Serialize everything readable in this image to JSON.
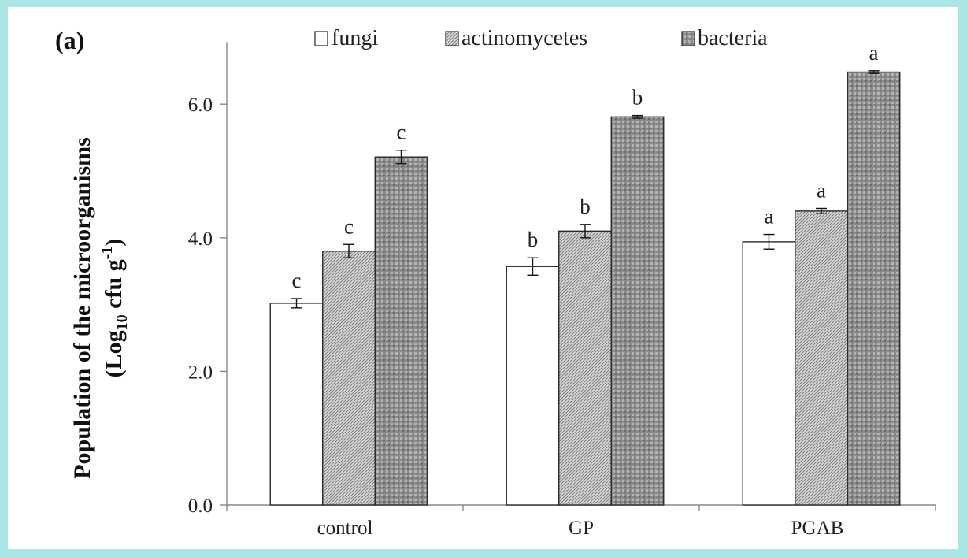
{
  "chart_data": {
    "type": "bar",
    "panel_label": "(a)",
    "ylabel_line1": "Population of the microorganisms",
    "ylabel_line2_prefix": "(Log",
    "ylabel_line2_sub": "10",
    "ylabel_line2_mid": " cfu g",
    "ylabel_line2_sup": "-1",
    "ylabel_line2_suffix": ")",
    "ylim": [
      0,
      7.0
    ],
    "yticks": [
      0,
      2,
      4,
      6
    ],
    "ytick_labels": [
      "0.0",
      "2.0",
      "4.0",
      "6.0"
    ],
    "categories": [
      "control",
      "GP",
      "PGAB"
    ],
    "series": [
      {
        "name": "fungi",
        "pattern": "none",
        "values": [
          3.02,
          3.57,
          3.94
        ],
        "errors": [
          0.07,
          0.13,
          0.11
        ],
        "letters": [
          "c",
          "b",
          "a"
        ]
      },
      {
        "name": "actinomycetes",
        "pattern": "hatch",
        "values": [
          3.8,
          4.1,
          4.4
        ],
        "errors": [
          0.1,
          0.1,
          0.04
        ],
        "letters": [
          "c",
          "b",
          "a"
        ]
      },
      {
        "name": "bacteria",
        "pattern": "dots",
        "values": [
          5.21,
          5.81,
          6.48
        ],
        "errors": [
          0.1,
          0.02,
          0.02
        ],
        "letters": [
          "c",
          "b",
          "a"
        ]
      }
    ],
    "legend_placement": "top",
    "grid": false
  }
}
